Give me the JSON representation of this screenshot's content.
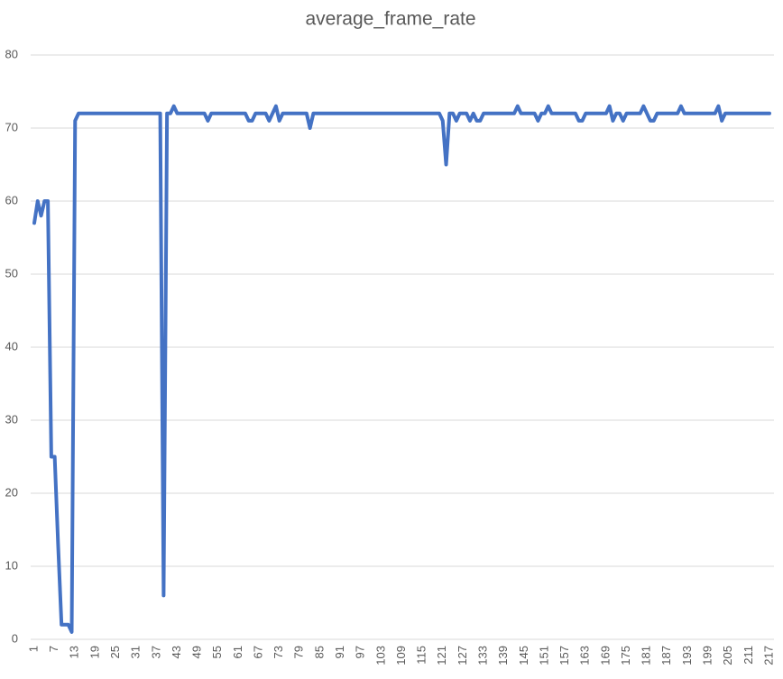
{
  "chart_data": {
    "type": "line",
    "title": "average_frame_rate",
    "categories": [
      "1",
      null,
      null,
      null,
      null,
      null,
      "7",
      null,
      null,
      null,
      null,
      null,
      "13",
      null,
      null,
      null,
      null,
      null,
      "19",
      null,
      null,
      null,
      null,
      null,
      "25",
      null,
      null,
      null,
      null,
      null,
      "31",
      null,
      null,
      null,
      null,
      null,
      "37",
      null,
      null,
      null,
      null,
      null,
      "43",
      null,
      null,
      null,
      null,
      null,
      "49",
      null,
      null,
      null,
      null,
      null,
      "55",
      null,
      null,
      null,
      null,
      null,
      "61",
      null,
      null,
      null,
      null,
      null,
      "67",
      null,
      null,
      null,
      null,
      null,
      "73",
      null,
      null,
      null,
      null,
      null,
      "79",
      null,
      null,
      null,
      null,
      null,
      "85",
      null,
      null,
      null,
      null,
      null,
      "91",
      null,
      null,
      null,
      null,
      null,
      "97",
      null,
      null,
      null,
      null,
      null,
      "103",
      null,
      null,
      null,
      null,
      null,
      "109",
      null,
      null,
      null,
      null,
      null,
      "115",
      null,
      null,
      null,
      null,
      null,
      "121",
      null,
      null,
      null,
      null,
      null,
      "127",
      null,
      null,
      null,
      null,
      null,
      "133",
      null,
      null,
      null,
      null,
      null,
      "139",
      null,
      null,
      null,
      null,
      null,
      "145",
      null,
      null,
      null,
      null,
      null,
      "151",
      null,
      null,
      null,
      null,
      null,
      "157",
      null,
      null,
      null,
      null,
      null,
      "163",
      null,
      null,
      null,
      null,
      null,
      "169",
      null,
      null,
      null,
      null,
      null,
      "175",
      null,
      null,
      null,
      null,
      null,
      "181",
      null,
      null,
      null,
      null,
      null,
      "187",
      null,
      null,
      null,
      null,
      null,
      "193",
      null,
      null,
      null,
      null,
      null,
      "199",
      null,
      null,
      null,
      null,
      null,
      "205",
      null,
      null,
      null,
      null,
      null,
      "211",
      null,
      null,
      null,
      null,
      null,
      "217"
    ],
    "values": [
      57,
      60,
      58,
      60,
      60,
      25,
      25,
      13,
      2,
      2,
      2,
      1,
      71,
      72,
      72,
      72,
      72,
      72,
      72,
      72,
      72,
      72,
      72,
      72,
      72,
      72,
      72,
      72,
      72,
      72,
      72,
      72,
      72,
      72,
      72,
      72,
      72,
      72,
      6,
      72,
      72,
      73,
      72,
      72,
      72,
      72,
      72,
      72,
      72,
      72,
      72,
      71,
      72,
      72,
      72,
      72,
      72,
      72,
      72,
      72,
      72,
      72,
      72,
      71,
      71,
      72,
      72,
      72,
      72,
      71,
      72,
      73,
      71,
      72,
      72,
      72,
      72,
      72,
      72,
      72,
      72,
      70,
      72,
      72,
      72,
      72,
      72,
      72,
      72,
      72,
      72,
      72,
      72,
      72,
      72,
      72,
      72,
      72,
      72,
      72,
      72,
      72,
      72,
      72,
      72,
      72,
      72,
      72,
      72,
      72,
      72,
      72,
      72,
      72,
      72,
      72,
      72,
      72,
      72,
      72,
      71,
      65,
      72,
      72,
      71,
      72,
      72,
      72,
      71,
      72,
      71,
      71,
      72,
      72,
      72,
      72,
      72,
      72,
      72,
      72,
      72,
      72,
      73,
      72,
      72,
      72,
      72,
      72,
      71,
      72,
      72,
      73,
      72,
      72,
      72,
      72,
      72,
      72,
      72,
      72,
      71,
      71,
      72,
      72,
      72,
      72,
      72,
      72,
      72,
      73,
      71,
      72,
      72,
      71,
      72,
      72,
      72,
      72,
      72,
      73,
      72,
      71,
      71,
      72,
      72,
      72,
      72,
      72,
      72,
      72,
      73,
      72,
      72,
      72,
      72,
      72,
      72,
      72,
      72,
      72,
      72,
      73,
      71,
      72,
      72,
      72,
      72,
      72,
      72,
      72,
      72,
      72,
      72,
      72,
      72,
      72,
      72
    ],
    "color": "#4472c4",
    "ylim": [
      0,
      80
    ],
    "yticks": [
      0,
      10,
      20,
      30,
      40,
      50,
      60,
      70,
      80
    ],
    "grid": true
  }
}
